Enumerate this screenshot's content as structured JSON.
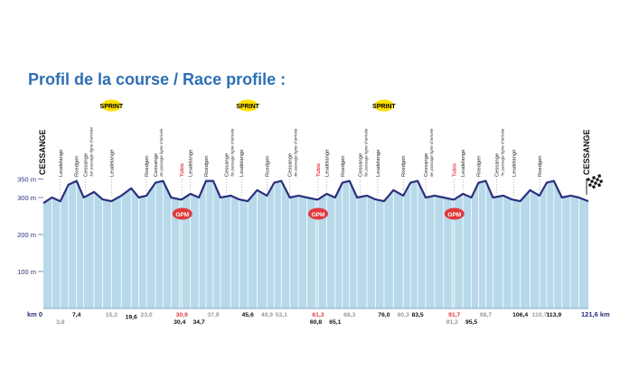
{
  "title": "Profil de la course / Race profile :",
  "colors": {
    "title": "#2e6fb5",
    "fill": "#b7d9ea",
    "line": "#2a2f7a",
    "sprint_badge": "#ffe000",
    "gpm_badge": "#e03a3e",
    "red_text": "#e03a3e",
    "grey_text": "#9a9a9a",
    "axis_text": "#2a2f7a"
  },
  "chart_data": {
    "type": "area",
    "title": "Profil de la course / Race profile :",
    "xlabel": "",
    "ylabel": "",
    "x_unit": "km",
    "y_unit": "m",
    "xlim": [
      0,
      121.6
    ],
    "ylim": [
      0,
      380
    ],
    "y_ticks": [
      {
        "value": 350,
        "label": "350 m"
      },
      {
        "value": 300,
        "label": "300 m"
      },
      {
        "value": 200,
        "label": "200 m"
      },
      {
        "value": 100,
        "label": "100 m"
      }
    ],
    "x_start_label": "km 0",
    "x_end_label": "121,6 km",
    "start_place": "CESSANGE",
    "finish_place": "CESSANGE",
    "profile": [
      [
        0,
        285
      ],
      [
        1.9,
        300
      ],
      [
        3.8,
        290
      ],
      [
        5.6,
        335
      ],
      [
        7.4,
        345
      ],
      [
        9.0,
        300
      ],
      [
        11.3,
        315
      ],
      [
        13.2,
        295
      ],
      [
        15.2,
        290
      ],
      [
        17.4,
        305
      ],
      [
        19.6,
        325
      ],
      [
        21.3,
        300
      ],
      [
        23.0,
        305
      ],
      [
        25.0,
        340
      ],
      [
        26.7,
        345
      ],
      [
        28.5,
        300
      ],
      [
        30.4,
        295
      ],
      [
        30.9,
        295
      ],
      [
        32.8,
        310
      ],
      [
        34.7,
        300
      ],
      [
        36.3,
        345
      ],
      [
        37.9,
        345
      ],
      [
        39.5,
        300
      ],
      [
        41.8,
        305
      ],
      [
        43.7,
        295
      ],
      [
        45.6,
        290
      ],
      [
        47.7,
        320
      ],
      [
        49.9,
        305
      ],
      [
        51.5,
        340
      ],
      [
        53.1,
        345
      ],
      [
        55.0,
        300
      ],
      [
        56.9,
        305
      ],
      [
        58.8,
        300
      ],
      [
        60.8,
        295
      ],
      [
        61.3,
        295
      ],
      [
        63.2,
        310
      ],
      [
        65.1,
        300
      ],
      [
        66.7,
        340
      ],
      [
        68.3,
        345
      ],
      [
        70.0,
        300
      ],
      [
        72.2,
        305
      ],
      [
        74.1,
        295
      ],
      [
        76.0,
        290
      ],
      [
        78.1,
        320
      ],
      [
        80.3,
        305
      ],
      [
        81.9,
        340
      ],
      [
        83.5,
        345
      ],
      [
        85.3,
        300
      ],
      [
        87.3,
        305
      ],
      [
        89.3,
        300
      ],
      [
        91.2,
        295
      ],
      [
        91.7,
        295
      ],
      [
        93.6,
        310
      ],
      [
        95.5,
        300
      ],
      [
        97.1,
        340
      ],
      [
        98.7,
        345
      ],
      [
        100.3,
        300
      ],
      [
        102.6,
        305
      ],
      [
        104.5,
        295
      ],
      [
        106.4,
        290
      ],
      [
        108.6,
        320
      ],
      [
        110.7,
        305
      ],
      [
        112.3,
        340
      ],
      [
        113.9,
        345
      ],
      [
        115.7,
        300
      ],
      [
        117.6,
        305
      ],
      [
        119.5,
        300
      ],
      [
        121.6,
        290
      ]
    ],
    "places": [
      {
        "km": 3.8,
        "name": "Leudelange"
      },
      {
        "km": 7.4,
        "name": "Roedgen"
      },
      {
        "km": 9.4,
        "name": "Cessange",
        "note": "1er passage ligne d'arrivée"
      },
      {
        "km": 15.2,
        "name": "Leudelange"
      },
      {
        "km": 23.0,
        "name": "Roedgen"
      },
      {
        "km": 25.0,
        "name": "Cessange",
        "note": "2e passage ligne d'arrivée"
      },
      {
        "km": 30.9,
        "name": "Tubis",
        "red": true
      },
      {
        "km": 32.8,
        "name": "Leudelange"
      },
      {
        "km": 36.3,
        "name": "Roedgen"
      },
      {
        "km": 40.8,
        "name": "Cessange",
        "note": "3e passage ligne d'arrivée"
      },
      {
        "km": 44.2,
        "name": "Leudelange"
      },
      {
        "km": 49.9,
        "name": "Roedgen"
      },
      {
        "km": 55.0,
        "name": "Cessange",
        "note": "4e passage ligne d'arrivée"
      },
      {
        "km": 61.3,
        "name": "Tubis",
        "red": true
      },
      {
        "km": 63.2,
        "name": "Leudelange"
      },
      {
        "km": 66.7,
        "name": "Roedgen"
      },
      {
        "km": 70.7,
        "name": "Cessange",
        "note": "5e passage ligne d'arrivée"
      },
      {
        "km": 74.6,
        "name": "Leudelange"
      },
      {
        "km": 80.3,
        "name": "Roedgen"
      },
      {
        "km": 85.3,
        "name": "Cessange",
        "note": "6e passage ligne d'arrivée"
      },
      {
        "km": 91.7,
        "name": "Tubis",
        "red": true
      },
      {
        "km": 93.6,
        "name": "Leudelange"
      },
      {
        "km": 97.1,
        "name": "Roedgen"
      },
      {
        "km": 101.1,
        "name": "Cessange",
        "note": "7e passage ligne d'arrivée"
      },
      {
        "km": 105.0,
        "name": "Leudelange"
      },
      {
        "km": 110.7,
        "name": "Roedgen"
      }
    ],
    "km_labels": [
      {
        "km": 3.8,
        "text": "3,8",
        "style": "grey",
        "row": 2
      },
      {
        "km": 7.4,
        "text": "7,4",
        "style": "black",
        "row": 1
      },
      {
        "km": 15.2,
        "text": "15,2",
        "style": "grey",
        "row": 1
      },
      {
        "km": 19.6,
        "text": "19,6",
        "style": "black",
        "row": 1.3
      },
      {
        "km": 23.0,
        "text": "23,0",
        "style": "grey",
        "row": 1
      },
      {
        "km": 30.9,
        "text": "30,9",
        "style": "red",
        "row": 1
      },
      {
        "km": 30.4,
        "text": "30,4",
        "style": "black",
        "row": 2
      },
      {
        "km": 34.7,
        "text": "34,7",
        "style": "black",
        "row": 2
      },
      {
        "km": 37.9,
        "text": "37,9",
        "style": "grey",
        "row": 1
      },
      {
        "km": 45.6,
        "text": "45,6",
        "style": "black",
        "row": 1
      },
      {
        "km": 49.9,
        "text": "49,9",
        "style": "grey",
        "row": 1
      },
      {
        "km": 53.1,
        "text": "53,1",
        "style": "grey",
        "row": 1
      },
      {
        "km": 61.3,
        "text": "61,3",
        "style": "red",
        "row": 1
      },
      {
        "km": 60.8,
        "text": "60,8",
        "style": "black",
        "row": 2
      },
      {
        "km": 65.1,
        "text": "65,1",
        "style": "black",
        "row": 2
      },
      {
        "km": 68.3,
        "text": "68,3",
        "style": "grey",
        "row": 1
      },
      {
        "km": 76.0,
        "text": "76,0",
        "style": "black",
        "row": 1
      },
      {
        "km": 80.3,
        "text": "80,3",
        "style": "grey",
        "row": 1
      },
      {
        "km": 83.5,
        "text": "83,5",
        "style": "black",
        "row": 1
      },
      {
        "km": 91.7,
        "text": "91,7",
        "style": "red",
        "row": 1
      },
      {
        "km": 91.2,
        "text": "91,2",
        "style": "grey",
        "row": 2
      },
      {
        "km": 95.5,
        "text": "95,5",
        "style": "black",
        "row": 2
      },
      {
        "km": 98.7,
        "text": "98,7",
        "style": "grey",
        "row": 1
      },
      {
        "km": 106.4,
        "text": "106,4",
        "style": "black",
        "row": 1
      },
      {
        "km": 110.7,
        "text": "110,7",
        "style": "grey",
        "row": 1
      },
      {
        "km": 113.9,
        "text": "113,9",
        "style": "black",
        "row": 1
      }
    ],
    "sprints": [
      {
        "km": 15.2,
        "label": "SPRINT"
      },
      {
        "km": 45.6,
        "label": "SPRINT"
      },
      {
        "km": 76.0,
        "label": "SPRINT"
      }
    ],
    "gpm": [
      {
        "km": 31.0,
        "label": "GPM"
      },
      {
        "km": 61.3,
        "label": "GPM"
      },
      {
        "km": 91.7,
        "label": "GPM"
      }
    ],
    "grid": false,
    "legend": "none"
  }
}
